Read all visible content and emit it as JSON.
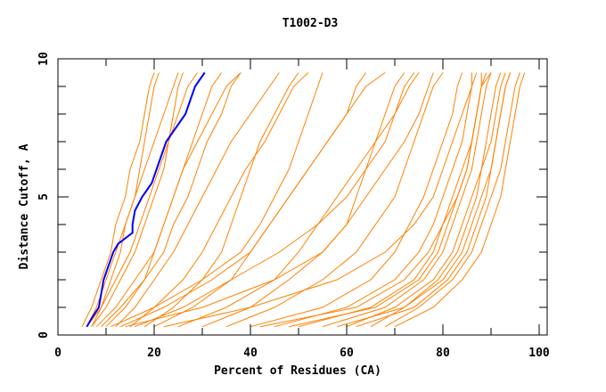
{
  "chart_data": {
    "type": "line",
    "title": "T1002-D3",
    "xlabel": "Percent of Residues (CA)",
    "ylabel": "Distance Cutoff, A",
    "xlim": [
      0,
      100
    ],
    "ylim": [
      0,
      10
    ],
    "xticks": [
      "0",
      "20",
      "40",
      "60",
      "80",
      "100"
    ],
    "yticks": [
      "0",
      "5",
      "10"
    ],
    "grid": false,
    "colors": {
      "models": "#ff8000",
      "highlight": "#0000ff"
    },
    "model_y": [
      0.3,
      1,
      2,
      3,
      4,
      5,
      6,
      7,
      8,
      9,
      9.5
    ],
    "models": [
      [
        5,
        7,
        9,
        11,
        12,
        14,
        15,
        17,
        18,
        19,
        20
      ],
      [
        6,
        8,
        10,
        12,
        14,
        16,
        18,
        20,
        22,
        24,
        25
      ],
      [
        7,
        9,
        12,
        15,
        17,
        19,
        21,
        23,
        25,
        27,
        29
      ],
      [
        8,
        12,
        16,
        20,
        22,
        24,
        26,
        28,
        30,
        32,
        34
      ],
      [
        10,
        14,
        18,
        22,
        24,
        27,
        29,
        31,
        34,
        36,
        38
      ],
      [
        12,
        16,
        20,
        24,
        27,
        30,
        33,
        36,
        40,
        44,
        46
      ],
      [
        15,
        20,
        26,
        30,
        33,
        36,
        39,
        43,
        46,
        49,
        52
      ],
      [
        18,
        24,
        30,
        34,
        36,
        38,
        40,
        42,
        45,
        48,
        50
      ],
      [
        20,
        28,
        36,
        40,
        44,
        48,
        52,
        56,
        60,
        62,
        64
      ],
      [
        25,
        35,
        45,
        50,
        54,
        58,
        62,
        66,
        70,
        73,
        75
      ],
      [
        30,
        40,
        48,
        55,
        60,
        64,
        68,
        72,
        75,
        77,
        78
      ],
      [
        35,
        45,
        55,
        62,
        66,
        70,
        72,
        74,
        76,
        78,
        80
      ],
      [
        40,
        55,
        65,
        70,
        73,
        76,
        78,
        80,
        82,
        83,
        84
      ],
      [
        45,
        60,
        70,
        75,
        78,
        80,
        82,
        84,
        85,
        86,
        87
      ],
      [
        50,
        65,
        74,
        78,
        80,
        82,
        84,
        86,
        87,
        88,
        89
      ],
      [
        55,
        68,
        76,
        80,
        82,
        84,
        86,
        87,
        88,
        89,
        90
      ],
      [
        60,
        70,
        78,
        82,
        84,
        86,
        88,
        89,
        90,
        91,
        92
      ],
      [
        65,
        72,
        80,
        84,
        86,
        88,
        90,
        91,
        92,
        93,
        94
      ],
      [
        68,
        75,
        82,
        86,
        88,
        90,
        92,
        93,
        94,
        95,
        96
      ],
      [
        70,
        78,
        84,
        88,
        90,
        92,
        93,
        94,
        95,
        96,
        97
      ],
      [
        42,
        62,
        72,
        77,
        80,
        83,
        85,
        86,
        87,
        88,
        88
      ],
      [
        48,
        66,
        75,
        79,
        81,
        83,
        85,
        86,
        87,
        88,
        90
      ],
      [
        58,
        72,
        79,
        83,
        85,
        87,
        88,
        90,
        91,
        92,
        93
      ],
      [
        62,
        74,
        81,
        85,
        87,
        89,
        90,
        91,
        92,
        93,
        94
      ],
      [
        9,
        13,
        18,
        20,
        22,
        24,
        26,
        29,
        32,
        35,
        38
      ],
      [
        11,
        20,
        30,
        38,
        42,
        45,
        48,
        50,
        52,
        54,
        55
      ],
      [
        14,
        30,
        45,
        55,
        60,
        62,
        64,
        66,
        68,
        70,
        72
      ],
      [
        7,
        10,
        13,
        16,
        18,
        20,
        22,
        23,
        24,
        25,
        26
      ],
      [
        6,
        9,
        11,
        13,
        14,
        16,
        17,
        18,
        19,
        20,
        21
      ],
      [
        16,
        26,
        36,
        46,
        54,
        60,
        64,
        68,
        70,
        72,
        74
      ],
      [
        22,
        40,
        58,
        68,
        74,
        78,
        80,
        82,
        84,
        86,
        86
      ],
      [
        13,
        22,
        32,
        40,
        44,
        48,
        52,
        56,
        60,
        64,
        68
      ]
    ],
    "highlight": {
      "y": [
        0.3,
        0.6,
        1,
        1.5,
        2,
        2.5,
        3,
        3.3,
        3.7,
        4,
        4.5,
        5,
        5.5,
        6,
        6.5,
        7,
        7.5,
        8,
        8.5,
        9,
        9.5
      ],
      "x": [
        6,
        7,
        8.5,
        9,
        9.5,
        10.5,
        11.5,
        12.5,
        15.5,
        15.5,
        16,
        17.5,
        19.5,
        20.5,
        21.5,
        22.5,
        24.5,
        26.5,
        27.5,
        28.5,
        30.5
      ]
    }
  }
}
